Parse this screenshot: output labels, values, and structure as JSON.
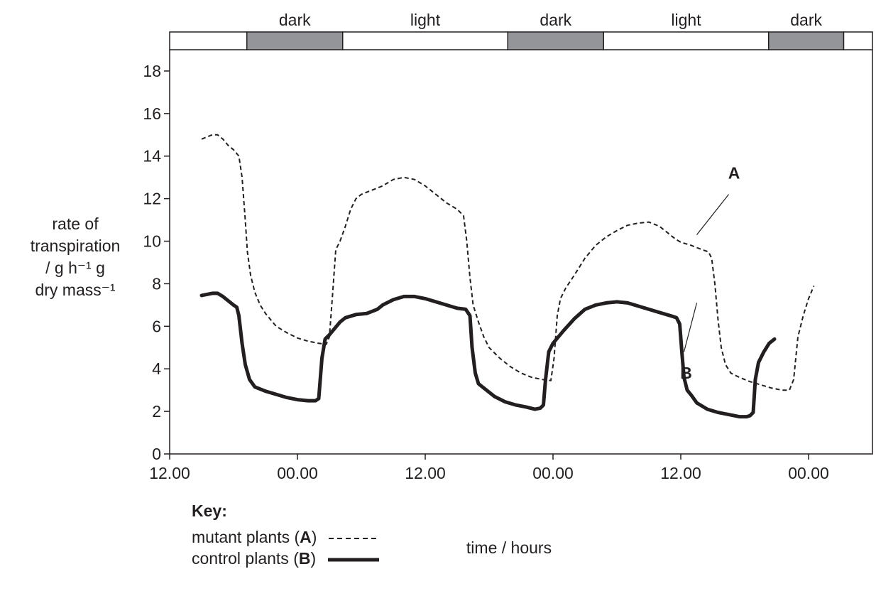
{
  "chart_data": {
    "type": "line",
    "xlabel": "time / hours",
    "x_tick_labels": [
      "12.00",
      "00.00",
      "12.00",
      "00.00",
      "12.00",
      "00.00"
    ],
    "x_tick_hours": [
      0,
      12,
      24,
      36,
      48,
      60
    ],
    "xlim": [
      0,
      66
    ],
    "ylim": [
      0,
      19
    ],
    "y_ticks": [
      0,
      2,
      4,
      6,
      8,
      10,
      12,
      14,
      16,
      18
    ],
    "ylabel_lines": [
      "rate of",
      "transpiration",
      "/ g h⁻¹ g",
      "dry mass⁻¹"
    ],
    "periods": [
      {
        "label": "",
        "start": 0,
        "end": 7.25,
        "color": "#ffffff"
      },
      {
        "label": "dark",
        "start": 7.25,
        "end": 16.25,
        "color": "#939598"
      },
      {
        "label": "light",
        "start": 16.25,
        "end": 31.75,
        "color": "#ffffff"
      },
      {
        "label": "dark",
        "start": 31.75,
        "end": 40.75,
        "color": "#939598"
      },
      {
        "label": "light",
        "start": 40.75,
        "end": 56.25,
        "color": "#ffffff"
      },
      {
        "label": "dark",
        "start": 56.25,
        "end": 63.3,
        "color": "#939598"
      },
      {
        "label": "",
        "start": 63.3,
        "end": 66,
        "color": "#ffffff"
      }
    ],
    "series": [
      {
        "name": "A",
        "style": "dashed",
        "points": [
          [
            3,
            14.8
          ],
          [
            3.5,
            14.9
          ],
          [
            4,
            15.0
          ],
          [
            4.5,
            15.0
          ],
          [
            5,
            14.8
          ],
          [
            5.5,
            14.5
          ],
          [
            6,
            14.3
          ],
          [
            6.5,
            14.0
          ],
          [
            6.8,
            13
          ],
          [
            7.1,
            11
          ],
          [
            7.3,
            9.5
          ],
          [
            7.6,
            8.4
          ],
          [
            8,
            7.6
          ],
          [
            8.5,
            7.0
          ],
          [
            9,
            6.6
          ],
          [
            9.5,
            6.3
          ],
          [
            10,
            6.0
          ],
          [
            11,
            5.7
          ],
          [
            12,
            5.45
          ],
          [
            13,
            5.3
          ],
          [
            14,
            5.2
          ],
          [
            14.7,
            5.15
          ],
          [
            15.0,
            5.5
          ],
          [
            15.3,
            7.5
          ],
          [
            15.6,
            9.6
          ],
          [
            16,
            10.0
          ],
          [
            16.5,
            10.7
          ],
          [
            17,
            11.5
          ],
          [
            17.5,
            12.0
          ],
          [
            18,
            12.2
          ],
          [
            19,
            12.4
          ],
          [
            20,
            12.6
          ],
          [
            21,
            12.9
          ],
          [
            22,
            13.0
          ],
          [
            23,
            12.9
          ],
          [
            24,
            12.6
          ],
          [
            25,
            12.2
          ],
          [
            26,
            11.8
          ],
          [
            27,
            11.5
          ],
          [
            27.6,
            11.2
          ],
          [
            27.9,
            10
          ],
          [
            28.2,
            8.3
          ],
          [
            28.5,
            7.0
          ],
          [
            29,
            6.2
          ],
          [
            29.5,
            5.5
          ],
          [
            30,
            5.0
          ],
          [
            31,
            4.5
          ],
          [
            32,
            4.1
          ],
          [
            33,
            3.8
          ],
          [
            34,
            3.6
          ],
          [
            35,
            3.5
          ],
          [
            35.8,
            3.45
          ],
          [
            36.1,
            4.5
          ],
          [
            36.4,
            6.5
          ],
          [
            36.7,
            7.3
          ],
          [
            37.2,
            7.8
          ],
          [
            38,
            8.4
          ],
          [
            39,
            9.2
          ],
          [
            40,
            9.8
          ],
          [
            41,
            10.2
          ],
          [
            42,
            10.5
          ],
          [
            43,
            10.75
          ],
          [
            44,
            10.85
          ],
          [
            45,
            10.9
          ],
          [
            46,
            10.7
          ],
          [
            47,
            10.3
          ],
          [
            47.5,
            10.1
          ],
          [
            48,
            9.95
          ],
          [
            49,
            9.8
          ],
          [
            50,
            9.6
          ],
          [
            50.6,
            9.5
          ],
          [
            50.9,
            9.2
          ],
          [
            51.2,
            8.0
          ],
          [
            51.5,
            6.3
          ],
          [
            51.8,
            5.0
          ],
          [
            52.2,
            4.2
          ],
          [
            52.7,
            3.8
          ],
          [
            53.5,
            3.6
          ],
          [
            54.5,
            3.4
          ],
          [
            55.5,
            3.25
          ],
          [
            56.5,
            3.1
          ],
          [
            57.5,
            3.0
          ],
          [
            58.2,
            3.0
          ],
          [
            58.6,
            3.5
          ],
          [
            59,
            5.5
          ],
          [
            59.5,
            6.5
          ],
          [
            60,
            7.3
          ],
          [
            60.5,
            7.9
          ]
        ]
      },
      {
        "name": "B",
        "style": "solid",
        "points": [
          [
            3,
            7.45
          ],
          [
            3.5,
            7.5
          ],
          [
            4,
            7.55
          ],
          [
            4.5,
            7.55
          ],
          [
            5,
            7.4
          ],
          [
            5.5,
            7.2
          ],
          [
            6,
            7.0
          ],
          [
            6.3,
            6.9
          ],
          [
            6.5,
            6.5
          ],
          [
            6.8,
            5.2
          ],
          [
            7.1,
            4.2
          ],
          [
            7.5,
            3.5
          ],
          [
            8,
            3.15
          ],
          [
            9,
            2.95
          ],
          [
            10,
            2.8
          ],
          [
            11,
            2.65
          ],
          [
            12,
            2.55
          ],
          [
            13,
            2.5
          ],
          [
            13.7,
            2.5
          ],
          [
            14.0,
            2.6
          ],
          [
            14.3,
            4.5
          ],
          [
            14.6,
            5.4
          ],
          [
            15,
            5.6
          ],
          [
            15.5,
            5.9
          ],
          [
            16,
            6.2
          ],
          [
            16.5,
            6.4
          ],
          [
            17.5,
            6.55
          ],
          [
            18.5,
            6.6
          ],
          [
            19.5,
            6.8
          ],
          [
            20,
            7.0
          ],
          [
            21,
            7.25
          ],
          [
            22,
            7.4
          ],
          [
            23,
            7.4
          ],
          [
            24,
            7.3
          ],
          [
            25,
            7.15
          ],
          [
            26,
            7.0
          ],
          [
            27,
            6.85
          ],
          [
            27.8,
            6.8
          ],
          [
            28.2,
            6.5
          ],
          [
            28.4,
            5.0
          ],
          [
            28.7,
            3.8
          ],
          [
            29,
            3.3
          ],
          [
            29.5,
            3.1
          ],
          [
            30.5,
            2.7
          ],
          [
            31.5,
            2.45
          ],
          [
            32.5,
            2.3
          ],
          [
            33.5,
            2.2
          ],
          [
            34.3,
            2.1
          ],
          [
            34.8,
            2.15
          ],
          [
            35.1,
            2.3
          ],
          [
            35.3,
            3.5
          ],
          [
            35.6,
            4.8
          ],
          [
            36,
            5.2
          ],
          [
            37,
            5.8
          ],
          [
            38,
            6.35
          ],
          [
            39,
            6.8
          ],
          [
            40,
            7.0
          ],
          [
            41,
            7.1
          ],
          [
            42,
            7.15
          ],
          [
            43,
            7.1
          ],
          [
            44,
            6.95
          ],
          [
            45,
            6.8
          ],
          [
            46,
            6.65
          ],
          [
            47,
            6.5
          ],
          [
            47.6,
            6.4
          ],
          [
            47.9,
            6.1
          ],
          [
            48.1,
            4.8
          ],
          [
            48.3,
            3.6
          ],
          [
            48.6,
            3.0
          ],
          [
            49,
            2.75
          ],
          [
            49.5,
            2.4
          ],
          [
            50.5,
            2.1
          ],
          [
            51.5,
            1.95
          ],
          [
            52.5,
            1.85
          ],
          [
            53.5,
            1.75
          ],
          [
            54.2,
            1.75
          ],
          [
            54.5,
            1.8
          ],
          [
            54.8,
            1.95
          ],
          [
            55.0,
            3.5
          ],
          [
            55.3,
            4.3
          ],
          [
            55.8,
            4.8
          ],
          [
            56.3,
            5.2
          ],
          [
            56.8,
            5.4
          ]
        ]
      }
    ],
    "annotations": [
      {
        "label": "A",
        "text_at": [
          53.0,
          13.2
        ],
        "line_from": [
          52.5,
          12.2
        ],
        "line_to": [
          49.5,
          10.3
        ]
      },
      {
        "label": "B",
        "text_at": [
          48.5,
          3.8
        ],
        "line_from": [
          48.3,
          4.8
        ],
        "line_to": [
          49.5,
          7.1
        ]
      }
    ]
  },
  "key": {
    "title": "Key:",
    "rows": [
      {
        "prefix": "mutant plants (",
        "letter": "A",
        "suffix": ")",
        "style": "dashed"
      },
      {
        "prefix": "control plants (",
        "letter": "B",
        "suffix": ")",
        "style": "solid"
      }
    ]
  }
}
